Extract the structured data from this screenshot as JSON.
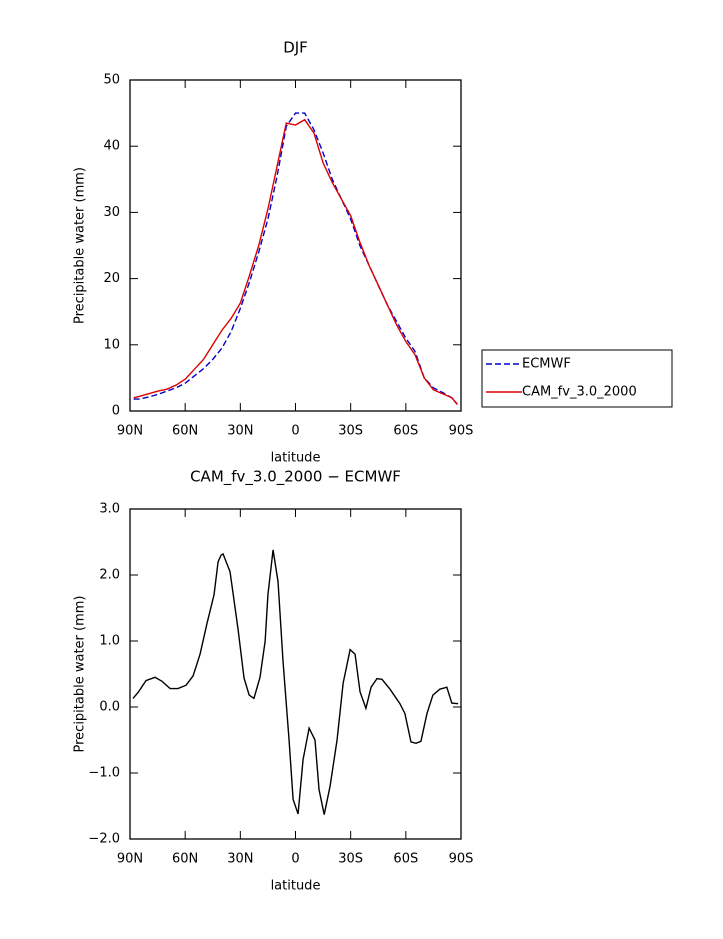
{
  "chart_data": [
    {
      "type": "line",
      "title": "DJF",
      "xlabel": "latitude",
      "ylabel": "Precipitable water (mm)",
      "x": [
        88,
        85,
        80,
        75,
        70,
        65,
        60,
        55,
        50,
        45,
        40,
        35,
        30,
        25,
        20,
        15,
        10,
        5,
        0,
        -5,
        -10,
        -15,
        -20,
        -25,
        -30,
        -35,
        -40,
        -45,
        -50,
        -55,
        -60,
        -65,
        -70,
        -75,
        -80,
        -85,
        -88
      ],
      "series": [
        {
          "name": "ECMWF",
          "color": "#0000cc",
          "linestyle": "dashed",
          "values": [
            1.8,
            1.8,
            2.1,
            2.5,
            3.0,
            3.5,
            4.2,
            5.3,
            6.4,
            7.8,
            9.5,
            12,
            15.5,
            19.5,
            24,
            29,
            35.5,
            43,
            45,
            45,
            42.5,
            39,
            35,
            32,
            29,
            25,
            22,
            19,
            16,
            13.5,
            11,
            9,
            5,
            3.5,
            2.8,
            2,
            1
          ]
        },
        {
          "name": "CAM_fv_3.0_2000",
          "color": "#dd0000",
          "linestyle": "solid",
          "values": [
            2,
            2.2,
            2.6,
            3,
            3.3,
            3.9,
            4.8,
            6.3,
            7.8,
            10,
            12.2,
            14,
            16.3,
            20.5,
            25,
            30.5,
            37,
            43.5,
            43.2,
            44,
            42,
            37.5,
            34.5,
            32,
            29.5,
            25.5,
            22,
            19,
            16,
            13,
            10.5,
            8.5,
            5,
            3.2,
            2.6,
            2,
            1
          ]
        }
      ],
      "xlim": [
        90,
        -90
      ],
      "xticks": [
        {
          "value": 90,
          "label": "90N"
        },
        {
          "value": 60,
          "label": "60N"
        },
        {
          "value": 30,
          "label": "30N"
        },
        0,
        {
          "value": -30,
          "label": "30S"
        },
        {
          "value": -60,
          "label": "60S"
        },
        {
          "value": -90,
          "label": "90S"
        }
      ],
      "ylim": [
        0,
        50
      ],
      "yticks": [
        0,
        10,
        20,
        30,
        40,
        50
      ],
      "legend": "right"
    },
    {
      "type": "line",
      "title": "CAM_fv_3.0_2000 − ECMWF",
      "xlabel": "latitude",
      "ylabel": "Precipitable water (mm)",
      "x": [
        88.4,
        85.6,
        81.3,
        76.4,
        72.6,
        68.2,
        63.9,
        59.5,
        55.7,
        51.9,
        48.1,
        44.3,
        42.1,
        40.5,
        39.4,
        35.6,
        31.2,
        28.0,
        25.2,
        22.6,
        19.3,
        16.5,
        15.0,
        12.2,
        9.5,
        6.8,
        3.5,
        1.3,
        -1.4,
        -4.1,
        -7.4,
        -10.6,
        -12.8,
        -15.6,
        -18.8,
        -22.6,
        -25.9,
        -29.7,
        -32.4,
        -35.1,
        -38.3,
        -41.1,
        -44.3,
        -47.0,
        -51.4,
        -56.8,
        -59.5,
        -62.8,
        -65.5,
        -68.2,
        -71.5,
        -74.7,
        -78.5,
        -82.3,
        -85.0,
        -88.4
      ],
      "values": [
        0.13,
        0.22,
        0.4,
        0.45,
        0.39,
        0.28,
        0.28,
        0.33,
        0.47,
        0.8,
        1.27,
        1.7,
        2.2,
        2.3,
        2.32,
        2.05,
        1.17,
        0.44,
        0.18,
        0.13,
        0.45,
        1.0,
        1.7,
        2.38,
        1.9,
        0.7,
        -0.5,
        -1.4,
        -1.62,
        -0.8,
        -0.32,
        -0.5,
        -1.25,
        -1.63,
        -1.2,
        -0.5,
        0.36,
        0.87,
        0.8,
        0.23,
        -0.02,
        0.3,
        0.43,
        0.42,
        0.27,
        0.05,
        -0.1,
        -0.53,
        -0.55,
        -0.52,
        -0.1,
        0.18,
        0.27,
        0.3,
        0.06,
        0.05
      ],
      "color": "#000000",
      "xlim": [
        90,
        -90
      ],
      "xticks": [
        {
          "value": 90,
          "label": "90N"
        },
        {
          "value": 60,
          "label": "60N"
        },
        {
          "value": 30,
          "label": "30N"
        },
        0,
        {
          "value": -30,
          "label": "30S"
        },
        {
          "value": -60,
          "label": "60S"
        },
        {
          "value": -90,
          "label": "90S"
        }
      ],
      "ylim": [
        -2,
        3
      ],
      "yticks": [
        {
          "value": -2,
          "label": "−2.0"
        },
        {
          "value": -1,
          "label": "−1.0"
        },
        {
          "value": 0,
          "label": "0.0"
        },
        {
          "value": 1,
          "label": "1.0"
        },
        {
          "value": 2,
          "label": "2.0"
        },
        {
          "value": 3,
          "label": "3.0"
        }
      ]
    }
  ]
}
